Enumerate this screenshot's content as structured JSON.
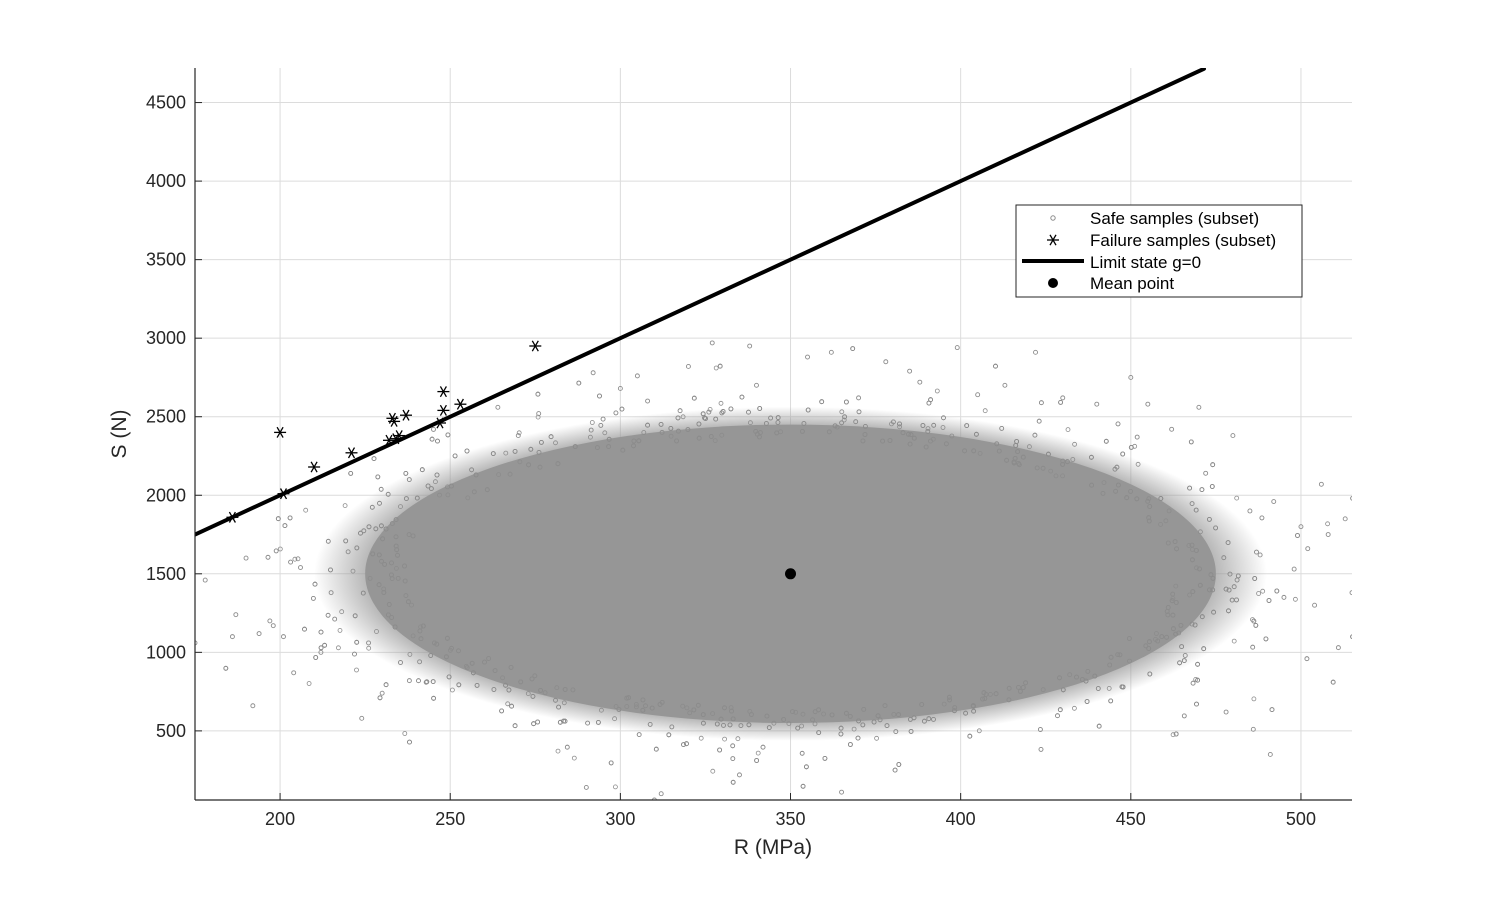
{
  "chart_data": {
    "type": "scatter",
    "title": "",
    "xlabel": "R (MPa)",
    "ylabel": "S (N)",
    "xlim": [
      175,
      515
    ],
    "ylim": [
      60,
      4720
    ],
    "xticks": [
      200,
      250,
      300,
      350,
      400,
      450,
      500
    ],
    "yticks": [
      500,
      1000,
      1500,
      2000,
      2500,
      3000,
      3500,
      4000,
      4500
    ],
    "grid": true,
    "legend_position": "top-right",
    "colors": {
      "safe": "#8c8c8c",
      "safe_fill": "#969696",
      "failure": "#000000",
      "limit_state": "#000000",
      "mean": "#000000",
      "grid": "#dcdcdc",
      "axis": "#262626"
    },
    "series": [
      {
        "name": "Safe samples (subset)",
        "marker": "open-circle",
        "distribution": {
          "mean_x": 350,
          "std_x": 50,
          "mean_y": 1500,
          "std_y": 400,
          "core_semi_axes": [
            125,
            950
          ]
        },
        "points": [
          [
            175,
            1060
          ],
          [
            178,
            1460
          ],
          [
            186,
            1100
          ],
          [
            187,
            1240
          ],
          [
            190,
            1600
          ],
          [
            192,
            660
          ],
          [
            197,
            1200
          ],
          [
            198,
            1170
          ],
          [
            201,
            1100
          ],
          [
            204,
            870
          ],
          [
            206,
            1540
          ],
          [
            212,
            1000
          ],
          [
            215,
            1380
          ],
          [
            220,
            1640
          ],
          [
            224,
            580
          ],
          [
            226,
            1060
          ],
          [
            230,
            740
          ],
          [
            233,
            1820
          ],
          [
            238,
            820
          ],
          [
            241,
            940
          ],
          [
            264,
            2560
          ],
          [
            270,
            2380
          ],
          [
            276,
            2520
          ],
          [
            290,
            140
          ],
          [
            292,
            2780
          ],
          [
            300,
            2680
          ],
          [
            305,
            2760
          ],
          [
            308,
            2600
          ],
          [
            310,
            60
          ],
          [
            312,
            100
          ],
          [
            320,
            2820
          ],
          [
            327,
            2970
          ],
          [
            335,
            220
          ],
          [
            338,
            2950
          ],
          [
            340,
            2700
          ],
          [
            355,
            2880
          ],
          [
            362,
            2910
          ],
          [
            365,
            110
          ],
          [
            370,
            2620
          ],
          [
            378,
            2850
          ],
          [
            385,
            2790
          ],
          [
            388,
            2720
          ],
          [
            399,
            2940
          ],
          [
            405,
            2640
          ],
          [
            413,
            2700
          ],
          [
            422,
            2910
          ],
          [
            430,
            2620
          ],
          [
            440,
            2580
          ],
          [
            450,
            2750
          ],
          [
            455,
            2580
          ],
          [
            462,
            2420
          ],
          [
            470,
            2560
          ],
          [
            472,
            2140
          ],
          [
            480,
            2380
          ],
          [
            485,
            1900
          ],
          [
            488,
            1620
          ],
          [
            492,
            1960
          ],
          [
            495,
            1350
          ],
          [
            498,
            1530
          ],
          [
            500,
            1800
          ],
          [
            502,
            1660
          ],
          [
            504,
            1300
          ],
          [
            506,
            2070
          ],
          [
            508,
            1750
          ],
          [
            511,
            1030
          ],
          [
            513,
            1850
          ],
          [
            515,
            1380
          ],
          [
            478,
            620
          ],
          [
            486,
            510
          ],
          [
            491,
            350
          ],
          [
            468,
            1180
          ],
          [
            466,
            980
          ]
        ]
      },
      {
        "name": "Failure samples (subset)",
        "marker": "asterisk",
        "points": [
          [
            186,
            1860
          ],
          [
            200,
            2400
          ],
          [
            201,
            2010
          ],
          [
            210,
            2180
          ],
          [
            221,
            2270
          ],
          [
            232,
            2350
          ],
          [
            233,
            2490
          ],
          [
            233.5,
            2470
          ],
          [
            234,
            2360
          ],
          [
            235,
            2380
          ],
          [
            237,
            2510
          ],
          [
            247,
            2460
          ],
          [
            248,
            2540
          ],
          [
            248,
            2660
          ],
          [
            253,
            2580
          ],
          [
            275,
            2950
          ]
        ]
      },
      {
        "name": "Limit state g=0",
        "marker": "line",
        "x": [
          175,
          471.5
        ],
        "y": [
          1750,
          4715
        ]
      },
      {
        "name": "Mean point",
        "marker": "filled-circle",
        "points": [
          [
            350,
            1500
          ]
        ]
      }
    ]
  }
}
